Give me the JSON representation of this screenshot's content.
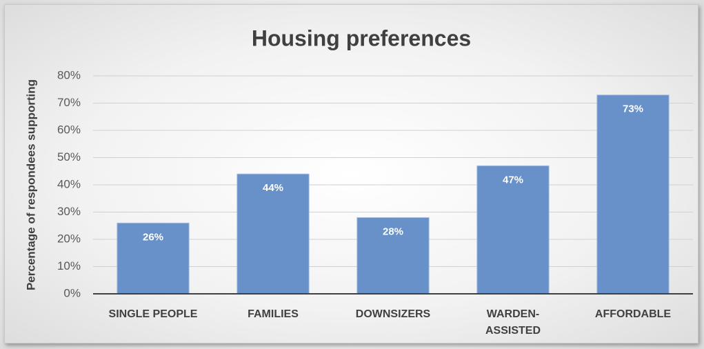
{
  "chart_data": {
    "type": "bar",
    "title": "Housing preferences",
    "y_label": "Percentage of respondees supporting",
    "categories": [
      "SINGLE PEOPLE",
      "FAMILIES",
      "DOWNSIZERS",
      "WARDEN-ASSISTED",
      "AFFORDABLE"
    ],
    "values": [
      26,
      44,
      28,
      47,
      73
    ],
    "value_labels": [
      "26%",
      "44%",
      "28%",
      "47%",
      "73%"
    ],
    "color": "#6891c9",
    "ylim": [
      0,
      80
    ],
    "yticks": [
      {
        "value": 0,
        "label": "0%"
      },
      {
        "value": 10,
        "label": "10%"
      },
      {
        "value": 20,
        "label": "20%"
      },
      {
        "value": 30,
        "label": "30%"
      },
      {
        "value": 40,
        "label": "40%"
      },
      {
        "value": 50,
        "label": "50%"
      },
      {
        "value": 60,
        "label": "60%"
      },
      {
        "value": 70,
        "label": "70%"
      },
      {
        "value": 80,
        "label": "80%"
      }
    ],
    "grid": true
  }
}
